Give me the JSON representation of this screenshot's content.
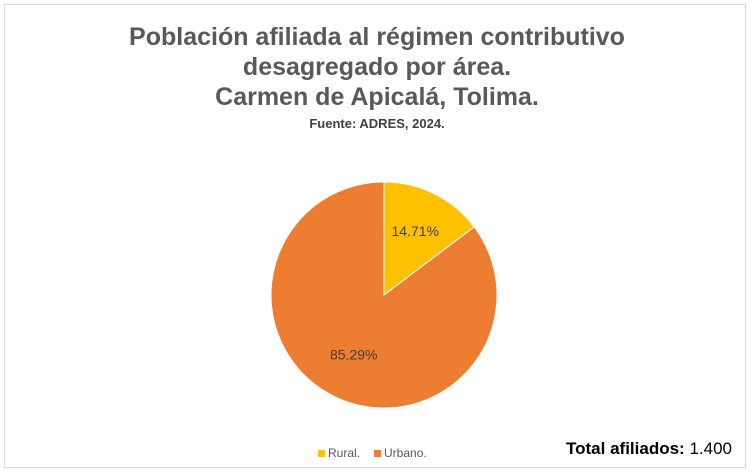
{
  "chart_data": {
    "type": "pie",
    "title_lines": [
      "Población afiliada al régimen contributivo",
      "desagregado por área.",
      "Carmen de Apicalá, Tolima."
    ],
    "subtitle": "Fuente: ADRES, 2024.",
    "categories": [
      "Rural.",
      "Urbano."
    ],
    "values": [
      14.71,
      85.29
    ],
    "data_labels": [
      "14.71%",
      "85.29%"
    ],
    "colors": [
      "#FFC000",
      "#ED7D31"
    ],
    "legend_position": "bottom",
    "annotation": {
      "label": "Total afiliados:",
      "value": "1.400"
    }
  }
}
